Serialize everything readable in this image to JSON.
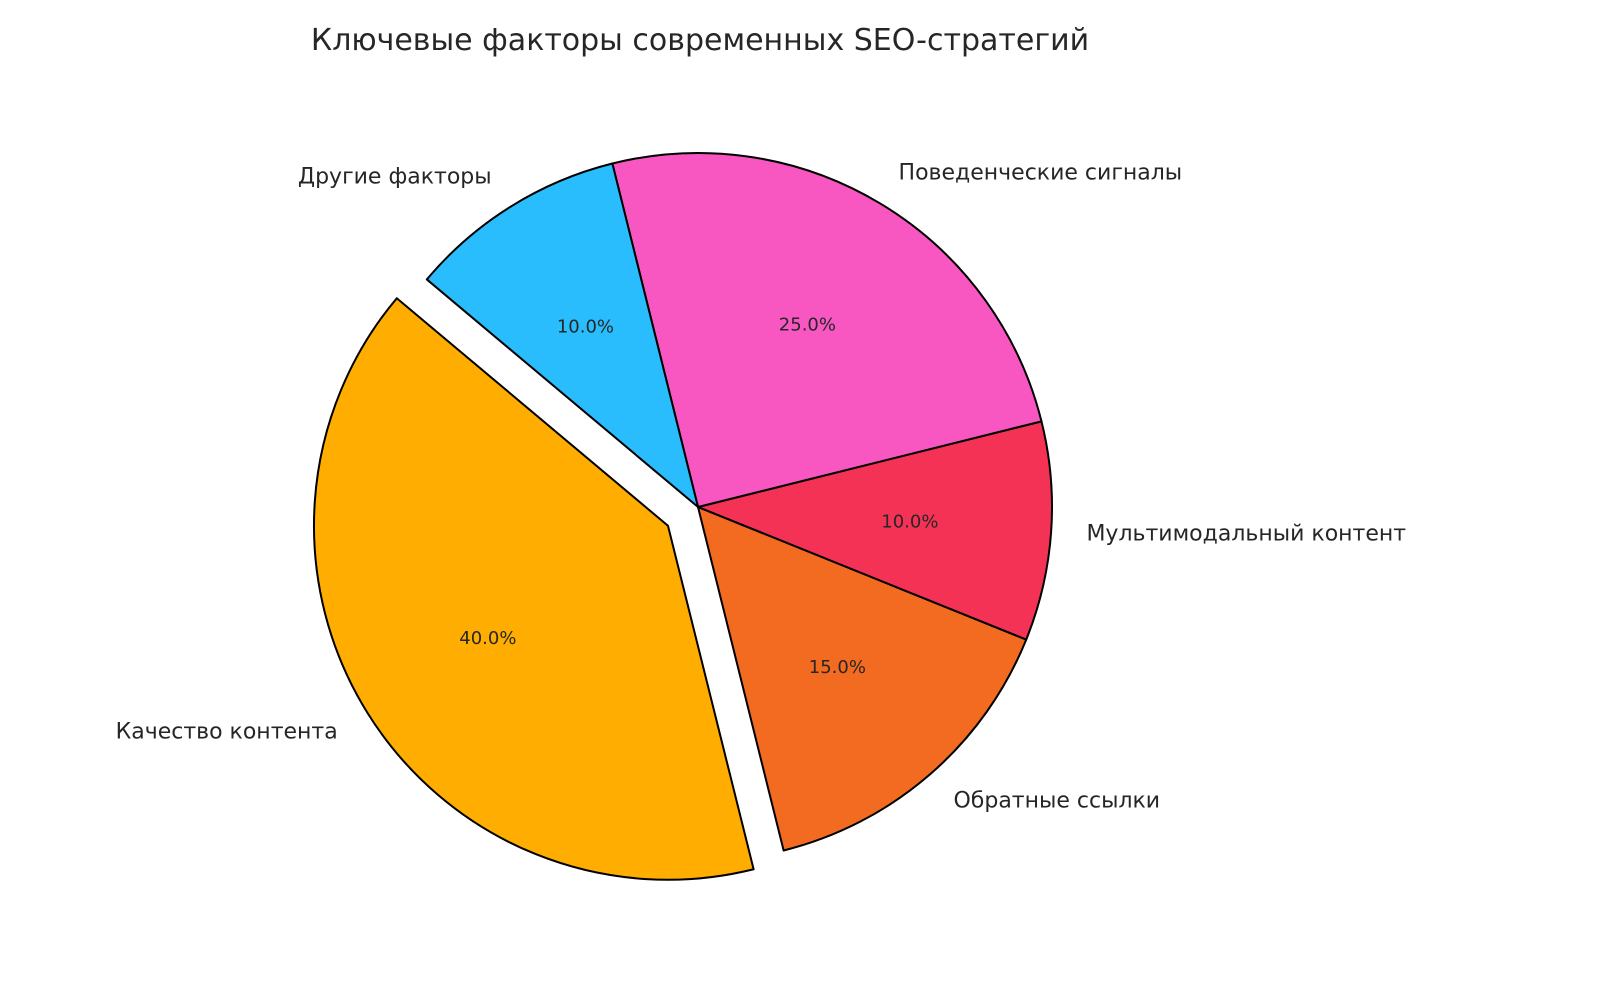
{
  "chart_data": {
    "type": "pie",
    "title": "Ключевые факторы современных SEO-стратегий",
    "labels": [
      "Качество контента",
      "Обратные ссылки",
      "Мультимодальный контент",
      "Поведенческие сигналы",
      "Другие факторы"
    ],
    "values": [
      40,
      15,
      10,
      25,
      10
    ],
    "percent_labels": [
      "40.0%",
      "15.0%",
      "10.0%",
      "25.0%",
      "10.0%"
    ],
    "colors": [
      "#FFAD00",
      "#F26B21",
      "#F43256",
      "#F857C1",
      "#29BDFD"
    ],
    "explode": [
      0.1,
      0,
      0,
      0,
      0
    ],
    "start_angle": 140,
    "direction": "counterclockwise",
    "edge_color": "#000000"
  }
}
